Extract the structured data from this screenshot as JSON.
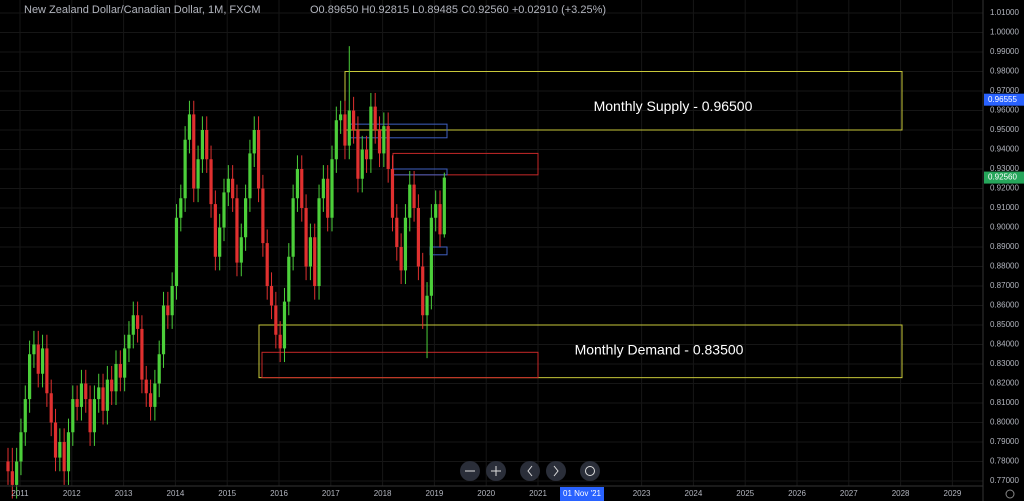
{
  "chart_data": {
    "type": "candlestick",
    "symbol": "New Zealand Dollar/Canadian Dollar, 1M, FXCM",
    "ohlc_text": "O0.89650 H0.92815 L0.89485 C0.92560 +0.02910 (+3.25%)",
    "up_color": "#4ccf3a",
    "down_color": "#e0302f",
    "candles": {
      "open": [
        0.78,
        0.775,
        0.768,
        0.78,
        0.795,
        0.812,
        0.835,
        0.84,
        0.825,
        0.838,
        0.815,
        0.8,
        0.782,
        0.79,
        0.775,
        0.795,
        0.812,
        0.808,
        0.82,
        0.812,
        0.795,
        0.812,
        0.818,
        0.806,
        0.822,
        0.816,
        0.83,
        0.823,
        0.838,
        0.845,
        0.855,
        0.848,
        0.822,
        0.815,
        0.808,
        0.82,
        0.835,
        0.86,
        0.855,
        0.87,
        0.905,
        0.915,
        0.945,
        0.958,
        0.92,
        0.935,
        0.95,
        0.935,
        0.912,
        0.885,
        0.9,
        0.918,
        0.925,
        0.915,
        0.882,
        0.895,
        0.915,
        0.938,
        0.95,
        0.92,
        0.892,
        0.87,
        0.86,
        0.845,
        0.838,
        0.862,
        0.885,
        0.915,
        0.93,
        0.91,
        0.88,
        0.895,
        0.87,
        0.915,
        0.925,
        0.905,
        0.935,
        0.955,
        0.958,
        0.942,
        0.96,
        0.95,
        0.925,
        0.94,
        0.935,
        0.962,
        0.95,
        0.938,
        0.952,
        0.93,
        0.905,
        0.89,
        0.878,
        0.905,
        0.922,
        0.91,
        0.88,
        0.855,
        0.865,
        0.905,
        0.912,
        0.8965
      ],
      "high": [
        0.787,
        0.787,
        0.787,
        0.802,
        0.819,
        0.842,
        0.847,
        0.847,
        0.845,
        0.845,
        0.822,
        0.807,
        0.797,
        0.797,
        0.802,
        0.819,
        0.819,
        0.827,
        0.827,
        0.819,
        0.819,
        0.825,
        0.825,
        0.829,
        0.829,
        0.837,
        0.837,
        0.845,
        0.852,
        0.862,
        0.862,
        0.855,
        0.829,
        0.822,
        0.827,
        0.842,
        0.867,
        0.867,
        0.877,
        0.912,
        0.922,
        0.952,
        0.965,
        0.965,
        0.942,
        0.957,
        0.957,
        0.942,
        0.919,
        0.907,
        0.925,
        0.932,
        0.932,
        0.922,
        0.902,
        0.922,
        0.945,
        0.957,
        0.957,
        0.927,
        0.899,
        0.877,
        0.867,
        0.852,
        0.869,
        0.892,
        0.922,
        0.937,
        0.937,
        0.917,
        0.902,
        0.902,
        0.922,
        0.932,
        0.932,
        0.942,
        0.962,
        0.965,
        0.965,
        0.993,
        0.967,
        0.957,
        0.947,
        0.947,
        0.969,
        0.969,
        0.957,
        0.959,
        0.959,
        0.937,
        0.912,
        0.897,
        0.912,
        0.929,
        0.929,
        0.917,
        0.887,
        0.872,
        0.912,
        0.919,
        0.919,
        0.92815
      ],
      "low": [
        0.768,
        0.761,
        0.761,
        0.773,
        0.788,
        0.805,
        0.828,
        0.818,
        0.818,
        0.808,
        0.793,
        0.775,
        0.775,
        0.768,
        0.768,
        0.788,
        0.801,
        0.801,
        0.805,
        0.788,
        0.788,
        0.805,
        0.799,
        0.799,
        0.809,
        0.809,
        0.816,
        0.816,
        0.831,
        0.838,
        0.841,
        0.815,
        0.808,
        0.801,
        0.801,
        0.813,
        0.828,
        0.848,
        0.848,
        0.863,
        0.898,
        0.908,
        0.938,
        0.913,
        0.913,
        0.928,
        0.928,
        0.905,
        0.878,
        0.878,
        0.893,
        0.911,
        0.908,
        0.875,
        0.875,
        0.888,
        0.908,
        0.931,
        0.913,
        0.885,
        0.863,
        0.853,
        0.838,
        0.831,
        0.831,
        0.855,
        0.878,
        0.908,
        0.903,
        0.873,
        0.873,
        0.863,
        0.863,
        0.908,
        0.898,
        0.898,
        0.928,
        0.948,
        0.935,
        0.935,
        0.943,
        0.918,
        0.918,
        0.928,
        0.928,
        0.943,
        0.931,
        0.931,
        0.923,
        0.898,
        0.883,
        0.871,
        0.871,
        0.898,
        0.903,
        0.873,
        0.848,
        0.833,
        0.858,
        0.898,
        0.89,
        0.89485
      ],
      "close": [
        0.775,
        0.768,
        0.78,
        0.795,
        0.812,
        0.835,
        0.84,
        0.825,
        0.838,
        0.815,
        0.8,
        0.782,
        0.79,
        0.775,
        0.795,
        0.812,
        0.808,
        0.82,
        0.812,
        0.795,
        0.812,
        0.818,
        0.806,
        0.822,
        0.816,
        0.83,
        0.823,
        0.838,
        0.845,
        0.855,
        0.848,
        0.822,
        0.815,
        0.808,
        0.82,
        0.835,
        0.86,
        0.855,
        0.87,
        0.905,
        0.915,
        0.945,
        0.958,
        0.92,
        0.935,
        0.95,
        0.935,
        0.912,
        0.885,
        0.9,
        0.918,
        0.925,
        0.915,
        0.882,
        0.895,
        0.915,
        0.938,
        0.95,
        0.92,
        0.892,
        0.87,
        0.86,
        0.845,
        0.838,
        0.862,
        0.885,
        0.915,
        0.93,
        0.91,
        0.88,
        0.895,
        0.87,
        0.915,
        0.925,
        0.905,
        0.935,
        0.955,
        0.958,
        0.942,
        0.96,
        0.95,
        0.925,
        0.94,
        0.935,
        0.962,
        0.95,
        0.938,
        0.952,
        0.93,
        0.905,
        0.89,
        0.878,
        0.905,
        0.922,
        0.91,
        0.88,
        0.855,
        0.865,
        0.905,
        0.912,
        0.8965,
        0.9256
      ]
    },
    "zones": [
      {
        "label": "Monthly Supply - 0.96500",
        "top": 0.98,
        "bottom": 0.95,
        "color": "#c8c83a"
      },
      {
        "label": "Monthly Demand - 0.83500",
        "top": 0.85,
        "bottom": 0.823,
        "color": "#c8c83a"
      }
    ],
    "boxes": [
      {
        "top": 0.938,
        "bottom": 0.927,
        "color": "#c62828"
      },
      {
        "top": 0.836,
        "bottom": 0.823,
        "color": "#c62828"
      },
      {
        "top": 0.953,
        "bottom": 0.946,
        "color": "#3f5fbf"
      },
      {
        "top": 0.93,
        "bottom": 0.927,
        "color": "#3f5fbf"
      },
      {
        "top": 0.89,
        "bottom": 0.886,
        "color": "#3f5fbf"
      }
    ],
    "ylim": [
      0.77,
      1.01
    ],
    "yticks": [
      {
        "value": 1.01,
        "label": "1.01000"
      },
      {
        "value": 1.0,
        "label": "1.00000"
      },
      {
        "value": 0.99,
        "label": "0.99000"
      },
      {
        "value": 0.98,
        "label": "0.98000"
      },
      {
        "value": 0.97,
        "label": "0.97000"
      },
      {
        "value": 0.96,
        "label": "0.96000"
      },
      {
        "value": 0.95,
        "label": "0.95000"
      },
      {
        "value": 0.94,
        "label": "0.94000"
      },
      {
        "value": 0.93,
        "label": "0.93000"
      },
      {
        "value": 0.92,
        "label": "0.92000"
      },
      {
        "value": 0.91,
        "label": "0.91000"
      },
      {
        "value": 0.9,
        "label": "0.90000"
      },
      {
        "value": 0.89,
        "label": "0.89000"
      },
      {
        "value": 0.88,
        "label": "0.88000"
      },
      {
        "value": 0.87,
        "label": "0.87000"
      },
      {
        "value": 0.86,
        "label": "0.86000"
      },
      {
        "value": 0.85,
        "label": "0.85000"
      },
      {
        "value": 0.84,
        "label": "0.84000"
      },
      {
        "value": 0.83,
        "label": "0.83000"
      },
      {
        "value": 0.82,
        "label": "0.82000"
      },
      {
        "value": 0.81,
        "label": "0.81000"
      },
      {
        "value": 0.8,
        "label": "0.80000"
      },
      {
        "value": 0.79,
        "label": "0.79000"
      },
      {
        "value": 0.78,
        "label": "0.78000"
      },
      {
        "value": 0.77,
        "label": "0.77000"
      }
    ],
    "price_labels": [
      {
        "value": 0.96555,
        "label": "0.96555",
        "color": "#2962ff"
      },
      {
        "value": 0.9256,
        "label": "0.92560",
        "color": "#26a65b"
      }
    ],
    "xticks": [
      2011,
      2012,
      2013,
      2014,
      2015,
      2016,
      2017,
      2018,
      2019,
      2020,
      2021,
      2023,
      2024,
      2025,
      2026,
      2027,
      2028,
      2029
    ],
    "crosshair_x_label": "01 Nov '21"
  }
}
